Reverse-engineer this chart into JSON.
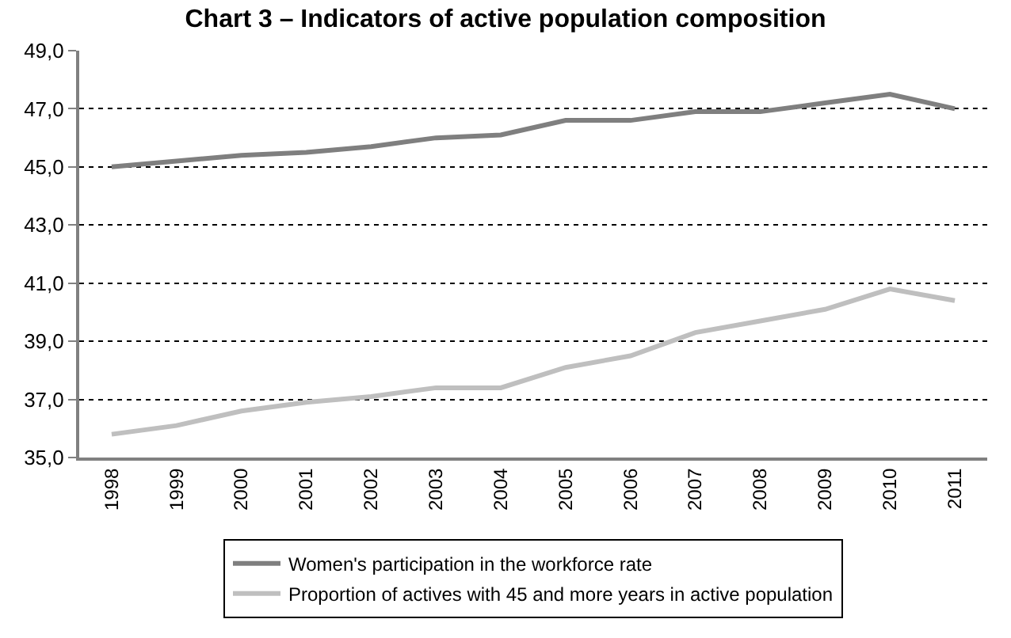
{
  "chart_data": {
    "type": "line",
    "title": "Chart 3 – Indicators of active population composition",
    "categories": [
      "1998",
      "1999",
      "2000",
      "2001",
      "2002",
      "2003",
      "2004",
      "2005",
      "2006",
      "2007",
      "2008",
      "2009",
      "2010",
      "2011"
    ],
    "series": [
      {
        "name": "Women's participation in the workforce rate",
        "color": "#7f7f7f",
        "values": [
          45.0,
          45.2,
          45.4,
          45.5,
          45.7,
          46.0,
          46.1,
          46.6,
          46.6,
          46.9,
          46.9,
          47.2,
          47.5,
          47.0
        ]
      },
      {
        "name": "Proportion of actives with 45 and more years in active population",
        "color": "#bfbfbf",
        "values": [
          35.8,
          36.1,
          36.6,
          36.9,
          37.1,
          37.4,
          37.4,
          38.1,
          38.5,
          39.3,
          39.7,
          40.1,
          40.8,
          40.4
        ]
      }
    ],
    "ylim": [
      35,
      49
    ],
    "yticks": [
      {
        "value": 35,
        "label": "35,0"
      },
      {
        "value": 37,
        "label": "37,0"
      },
      {
        "value": 39,
        "label": "39,0"
      },
      {
        "value": 41,
        "label": "41,0"
      },
      {
        "value": 43,
        "label": "43,0"
      },
      {
        "value": 45,
        "label": "45,0"
      },
      {
        "value": 47,
        "label": "47,0"
      },
      {
        "value": 49,
        "label": "49,0"
      }
    ],
    "grid": "y",
    "legend": "bottom",
    "marker": "none",
    "line_style": "solid"
  }
}
